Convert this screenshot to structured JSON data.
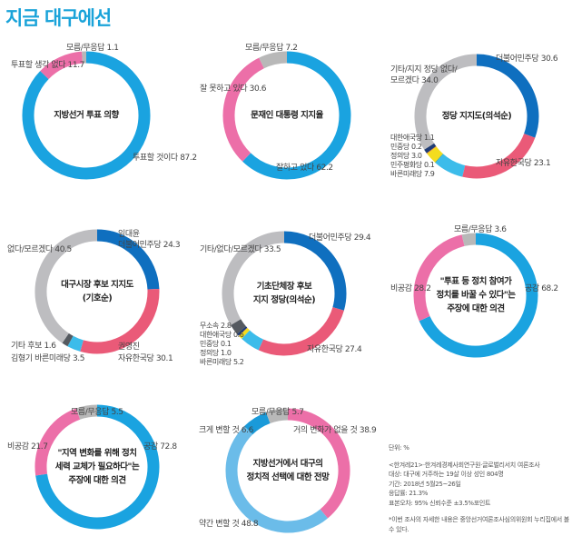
{
  "page": {
    "title": "지금 대구에선"
  },
  "chart_data": [
    {
      "type": "pie",
      "title": "지방선거 투표 의향",
      "categories": [
        "투표할 것이다",
        "투표할 생각 없다",
        "모름/무응답"
      ],
      "values": [
        87.2,
        11.7,
        1.1
      ],
      "colors": [
        "#1aa3e0",
        "#ec6fa8",
        "#b8b8b8"
      ]
    },
    {
      "type": "pie",
      "title": "문재인 대통령 지지율",
      "categories": [
        "잘하고 있다",
        "잘 못하고 있다",
        "모름/무응답"
      ],
      "values": [
        62.2,
        30.6,
        7.2
      ],
      "colors": [
        "#1aa3e0",
        "#ec6fa8",
        "#b8b8b8"
      ]
    },
    {
      "type": "pie",
      "title": "정당 지지도(의석순)",
      "categories": [
        "더불어민주당",
        "자유한국당",
        "바른미래당",
        "민주평화당",
        "정의당",
        "민중당",
        "대한애국당",
        "기타/지지 정당 없다/모르겠다"
      ],
      "values": [
        30.6,
        23.1,
        7.9,
        0.1,
        3.0,
        0.2,
        1.1,
        34.0
      ],
      "colors": [
        "#0f6fbf",
        "#ea5a78",
        "#3cbcea",
        "#2e8a3e",
        "#f3dc1e",
        "#f08a20",
        "#1f3c75",
        "#bdbdc0"
      ]
    },
    {
      "type": "pie",
      "title": "대구시장 후보 지지도 (기호순)",
      "categories": [
        "임대윤 더불어민주당",
        "권영진 자유한국당",
        "김형기 바른미래당",
        "기타 후보",
        "없다/모르겠다"
      ],
      "values": [
        24.3,
        30.1,
        3.5,
        1.6,
        40.5
      ],
      "colors": [
        "#0f6fbf",
        "#ea5a78",
        "#3cbcea",
        "#555a60",
        "#bdbdc0"
      ]
    },
    {
      "type": "pie",
      "title": "기초단체장 후보 지지 정당(의석순)",
      "categories": [
        "더불어민주당",
        "자유한국당",
        "바른미래당",
        "정의당",
        "민중당",
        "대한애국당",
        "무소속",
        "기타/없다/모르겠다"
      ],
      "values": [
        29.4,
        27.4,
        5.2,
        1.0,
        0.1,
        0.6,
        2.8,
        33.5
      ],
      "colors": [
        "#0f6fbf",
        "#ea5a78",
        "#3cbcea",
        "#f3dc1e",
        "#f08a20",
        "#1f3c75",
        "#555a60",
        "#bdbdc0"
      ]
    },
    {
      "type": "pie",
      "title": "\"투표 등 정치 참여가 정치를 바꿀 수 있다\"는 주장에 대한 의견",
      "categories": [
        "공감",
        "비공감",
        "모름/무응답"
      ],
      "values": [
        68.2,
        28.2,
        3.6
      ],
      "colors": [
        "#1aa3e0",
        "#ec6fa8",
        "#b8b8b8"
      ]
    },
    {
      "type": "pie",
      "title": "\"지역 변화를 위해 정치 세력 교체가 필요하다\"는 주장에 대한 의견",
      "categories": [
        "공감",
        "비공감",
        "모름/무응답"
      ],
      "values": [
        72.8,
        21.7,
        5.5
      ],
      "colors": [
        "#1aa3e0",
        "#ec6fa8",
        "#b8b8b8"
      ]
    },
    {
      "type": "pie",
      "title": "지방선거에서 대구의 정치적 선택에 대한 전망",
      "categories": [
        "거의 변화가 없을 것",
        "약간 변할 것",
        "크게 변할 것",
        "모름/무응답"
      ],
      "values": [
        38.9,
        48.8,
        6.6,
        5.7
      ],
      "colors": [
        "#ec6fa8",
        "#6bbce9",
        "#1a9ad9",
        "#b8b8b8"
      ]
    }
  ],
  "charts": [
    {
      "title_lines": [
        "지방선거 투표 의향"
      ],
      "labels": [
        "모름/무응답 1.1",
        "투표할 생각 없다 11.7",
        "투표할 것이다 87.2"
      ]
    },
    {
      "title_lines": [
        "문재인 대통령 지지율"
      ],
      "labels": [
        "모름/무응답 7.2",
        "잘 못하고 있다 30.6",
        "잘하고 있다 62.2"
      ]
    },
    {
      "title_lines": [
        "정당 지지도(의석순)"
      ],
      "labels": [
        "더불어민주당 30.6",
        "기타/지지 정당 없다/",
        "모르겠다 34.0",
        "대한애국당 1.1",
        "민중당 0.2",
        "정의당 3.0",
        "민주평화당 0.1",
        "바른미래당 7.9",
        "자유한국당 23.1"
      ]
    },
    {
      "title_lines": [
        "대구시장 후보 지지도",
        "(기호순)"
      ],
      "labels": [
        "임대윤",
        "더불어민주당 24.3",
        "없다/모르겠다 40.5",
        "기타 후보 1.6",
        "김형기 바른미래당 3.5",
        "권영진",
        "자유한국당 30.1"
      ]
    },
    {
      "title_lines": [
        "기초단체장 후보",
        "지지 정당(의석순)"
      ],
      "labels": [
        "더불어민주당 29.4",
        "기타/없다/모르겠다 33.5",
        "무소속 2.8",
        "대한애국당 0.6",
        "민중당 0.1",
        "정의당 1.0",
        "바른미래당 5.2",
        "자유한국당 27.4"
      ]
    },
    {
      "title_lines": [
        "\"투표 등 정치 참여가",
        "정치를 바꿀 수 있다\"는",
        "주장에 대한 의견"
      ],
      "labels": [
        "모름/무응답 3.6",
        "비공감 28.2",
        "공감 68.2"
      ]
    },
    {
      "title_lines": [
        "\"지역 변화를 위해 정치",
        "세력 교체가 필요하다\"는",
        "주장에 대한 의견"
      ],
      "labels": [
        "모름/무응답 5.5",
        "비공감 21.7",
        "공감 72.8"
      ]
    },
    {
      "title_lines": [
        "지방선거에서 대구의",
        "정치적 선택에 대한 전망"
      ],
      "labels": [
        "모름/무응답 5.7",
        "크게 변할 것 6.6",
        "거의 변화가 없을 것 38.9",
        "약간 변할 것 48.8"
      ]
    }
  ],
  "notes": {
    "unit": "단위: %",
    "source": "<한겨레21>·한겨레경제사회연구원·글로벌리서치 여론조사",
    "target": "대상: 대구에 거주하는 19살 이상 성인 804명",
    "period": "기간: 2018년 5월25~26일",
    "response_rate": "응답률: 21.3%",
    "margin": "표본오차: 95% 신뢰수준 ±3.5%포인트",
    "footnote": "*이번 조사의 자세한 내용은 중앙선거여론조사심의위원회 누리집에서 볼 수 있다."
  }
}
